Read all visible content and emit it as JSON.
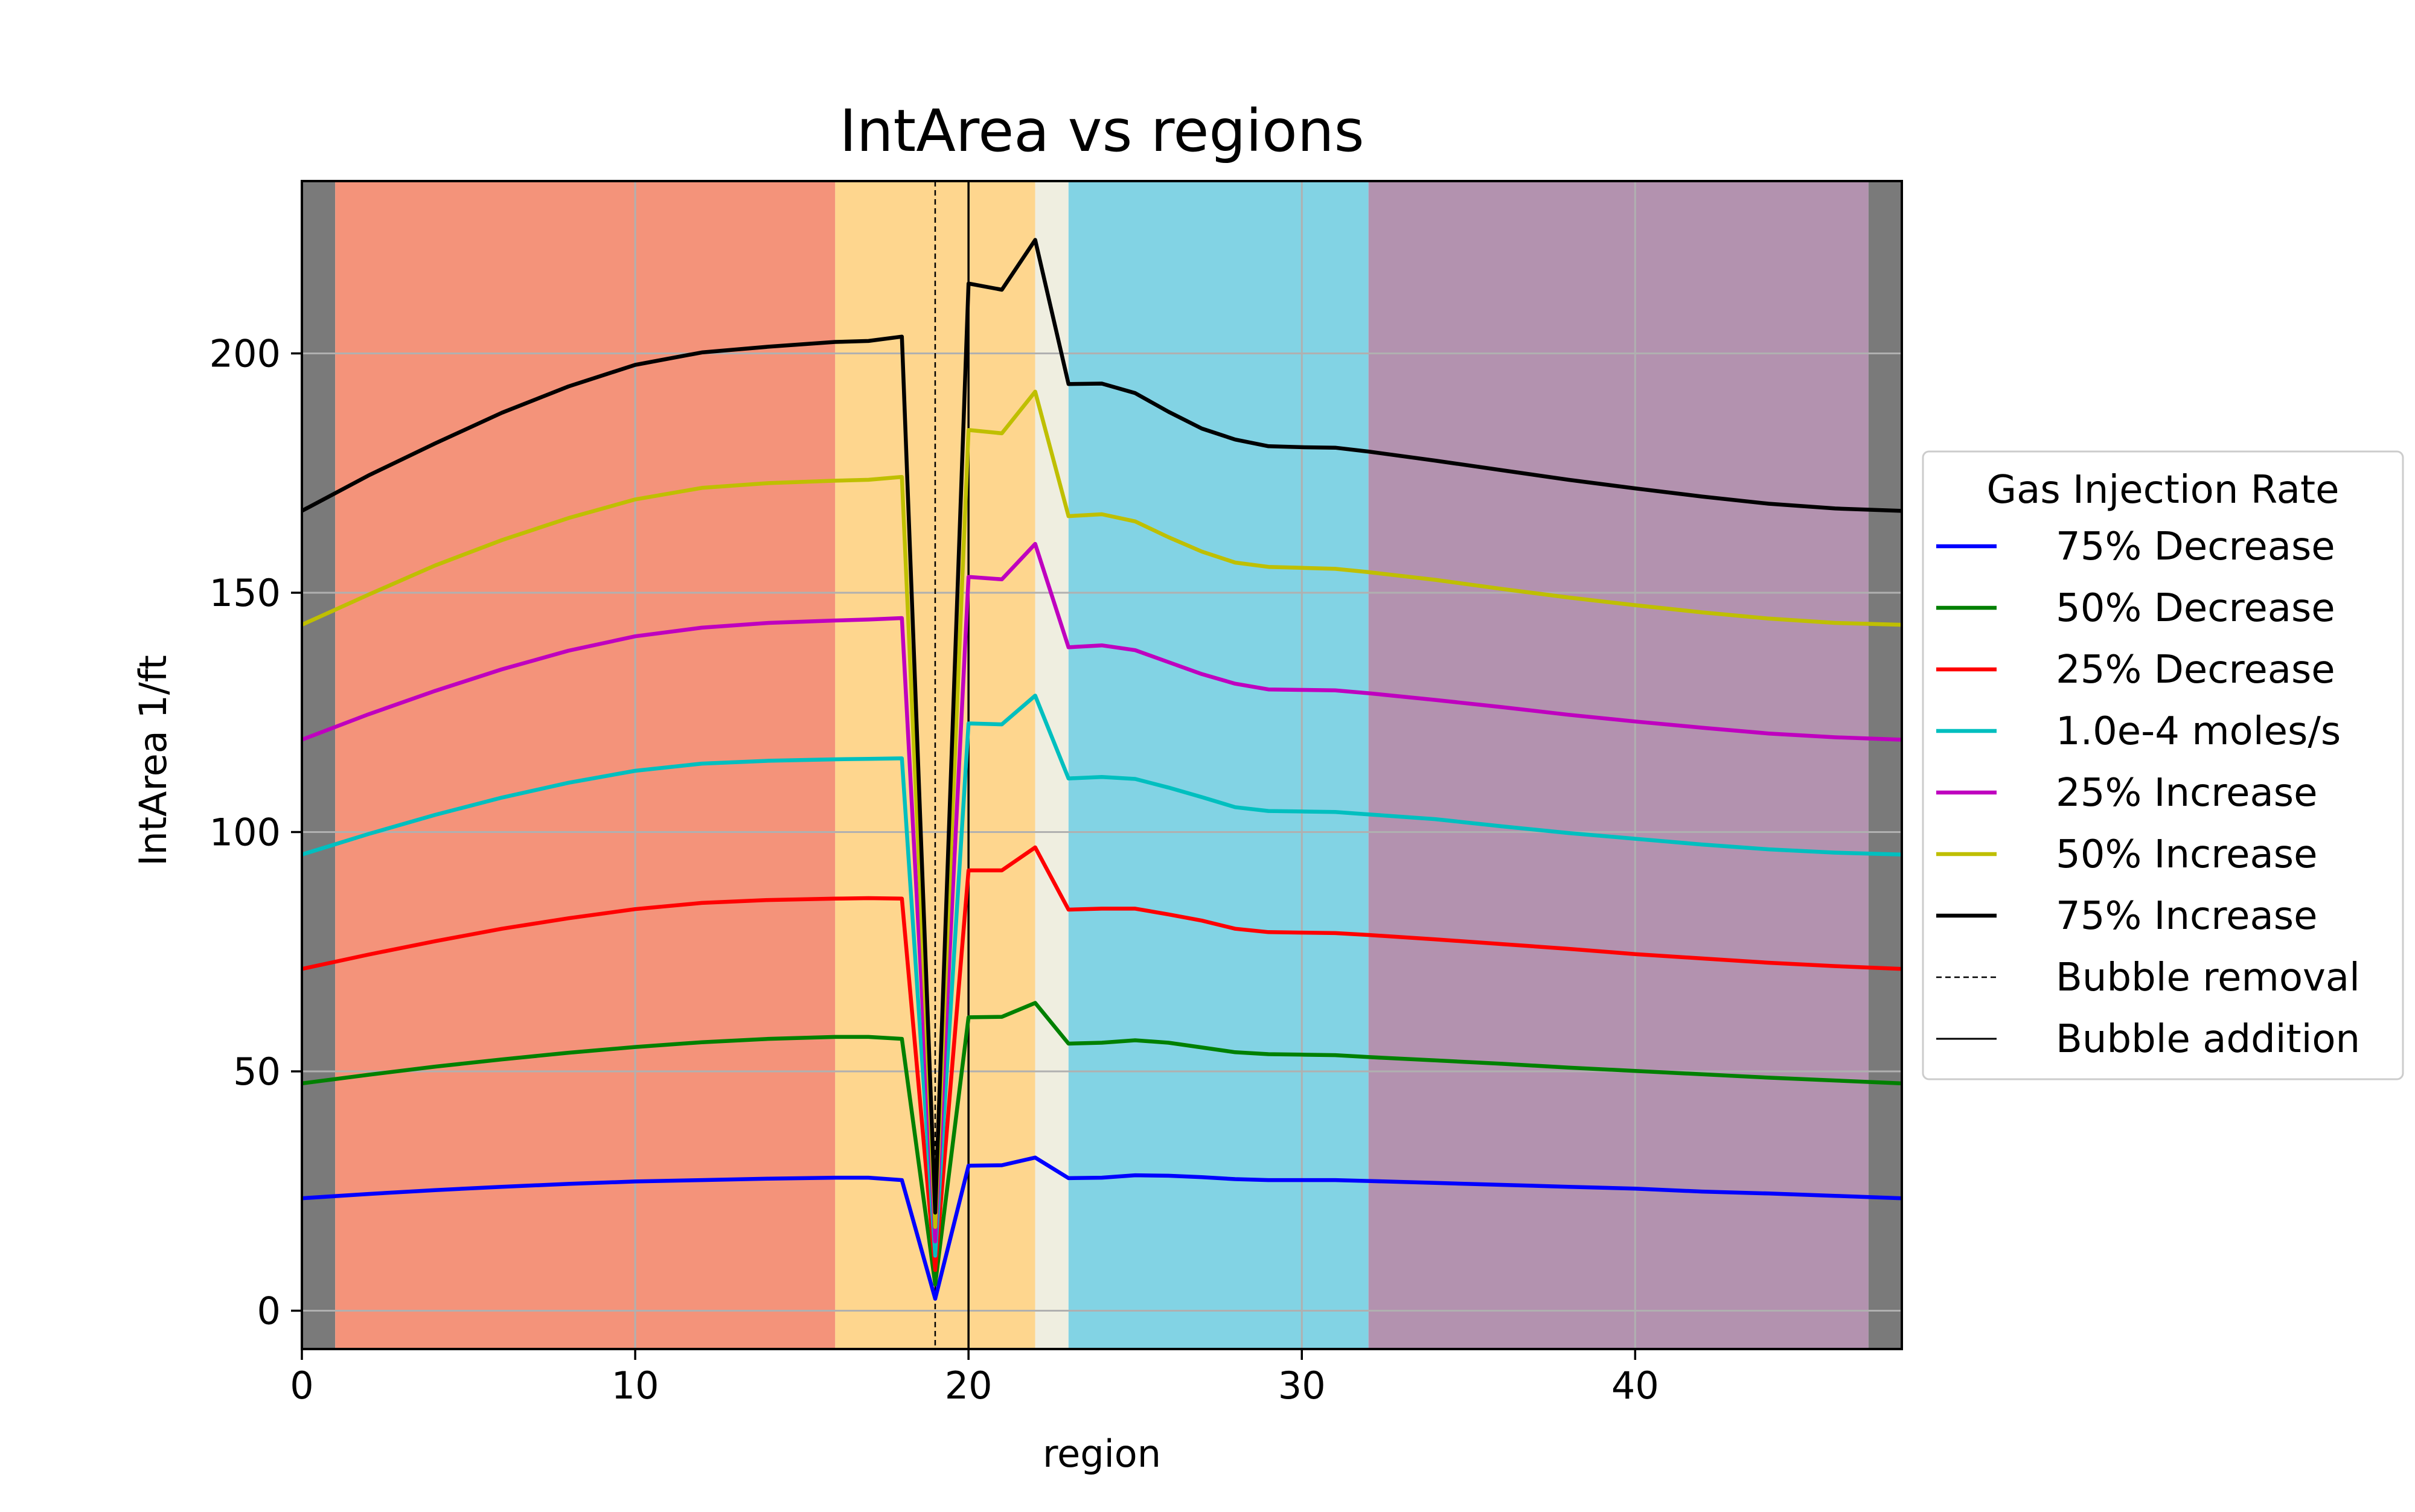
{
  "chart_data": {
    "type": "line",
    "title": "IntArea vs regions",
    "xlabel": "region",
    "ylabel": "IntArea 1/ft",
    "xlim": [
      0,
      48
    ],
    "ylim": [
      -8,
      236
    ],
    "xticks": [
      0,
      10,
      20,
      30,
      40
    ],
    "yticks": [
      0,
      50,
      100,
      150,
      200
    ],
    "grid": true,
    "legend": {
      "title": "Gas Injection Rate",
      "placement": "right-outside"
    },
    "region_bands": [
      {
        "from": 0,
        "to": 1,
        "color": "#7a7a7a"
      },
      {
        "from": 1,
        "to": 16,
        "color": "#f4937a"
      },
      {
        "from": 16,
        "to": 22,
        "color": "#fed68e"
      },
      {
        "from": 22,
        "to": 23,
        "color": "#efeee0"
      },
      {
        "from": 23,
        "to": 32,
        "color": "#82d3e4"
      },
      {
        "from": 32,
        "to": 47,
        "color": "#b392af"
      },
      {
        "from": 47,
        "to": 48,
        "color": "#7a7a7a"
      }
    ],
    "vlines": [
      {
        "name": "Bubble removal",
        "x": 19,
        "style": "dashed",
        "color": "#000000"
      },
      {
        "name": "Bubble addition",
        "x": 20,
        "style": "solid",
        "color": "#000000"
      }
    ],
    "x": [
      0,
      2,
      4,
      6,
      8,
      10,
      12,
      14,
      16,
      17,
      18,
      19,
      20,
      21,
      22,
      23,
      24,
      25,
      26,
      27,
      28,
      29,
      30,
      31,
      32,
      34,
      36,
      38,
      40,
      42,
      44,
      46,
      48
    ],
    "series": [
      {
        "name": "75% Decrease",
        "color": "#0000ff",
        "values": [
          23.5,
          24.4,
          25.2,
          25.9,
          26.5,
          27.0,
          27.3,
          27.6,
          27.8,
          27.8,
          27.3,
          2.5,
          30.3,
          30.4,
          32.0,
          27.7,
          27.8,
          28.3,
          28.2,
          27.9,
          27.5,
          27.3,
          27.3,
          27.3,
          27.1,
          26.7,
          26.3,
          25.9,
          25.5,
          24.9,
          24.5,
          24.0,
          23.5
        ]
      },
      {
        "name": "50% Decrease",
        "color": "#008000",
        "values": [
          47.5,
          49.3,
          51.0,
          52.5,
          53.9,
          55.1,
          56.1,
          56.8,
          57.2,
          57.2,
          56.8,
          5.5,
          61.3,
          61.4,
          64.3,
          55.8,
          56.0,
          56.5,
          56.0,
          55.0,
          54.0,
          53.6,
          53.5,
          53.4,
          53.0,
          52.3,
          51.6,
          50.8,
          50.1,
          49.4,
          48.7,
          48.1,
          47.5
        ]
      },
      {
        "name": "25% Decrease",
        "color": "#ff0000",
        "values": [
          71.4,
          74.4,
          77.2,
          79.8,
          82.0,
          83.9,
          85.2,
          85.8,
          86.1,
          86.2,
          86.1,
          8.5,
          92.0,
          92.0,
          96.8,
          83.8,
          84.0,
          84.0,
          82.8,
          81.5,
          79.8,
          79.1,
          79.0,
          78.9,
          78.5,
          77.6,
          76.6,
          75.6,
          74.5,
          73.6,
          72.7,
          72.0,
          71.4
        ]
      },
      {
        "name": "1.0e-4 moles/s",
        "color": "#00bfbf",
        "values": [
          95.3,
          99.6,
          103.6,
          107.2,
          110.3,
          112.8,
          114.3,
          114.9,
          115.2,
          115.3,
          115.4,
          11.5,
          122.7,
          122.5,
          128.5,
          111.2,
          111.5,
          111.1,
          109.3,
          107.3,
          105.2,
          104.4,
          104.3,
          104.2,
          103.7,
          102.7,
          101.2,
          99.8,
          98.6,
          97.4,
          96.4,
          95.7,
          95.3
        ]
      },
      {
        "name": "25% Increase",
        "color": "#bf00bf",
        "values": [
          119.3,
          124.6,
          129.5,
          134.0,
          137.9,
          140.9,
          142.7,
          143.7,
          144.2,
          144.4,
          144.7,
          14.5,
          153.3,
          152.8,
          160.2,
          138.6,
          139.0,
          138.0,
          135.5,
          133.0,
          131.0,
          129.8,
          129.7,
          129.6,
          129.0,
          127.6,
          126.1,
          124.5,
          123.1,
          121.8,
          120.6,
          119.8,
          119.3
        ]
      },
      {
        "name": "50% Increase",
        "color": "#bfbf00",
        "values": [
          143.3,
          149.6,
          155.7,
          161.0,
          165.6,
          169.5,
          171.9,
          172.9,
          173.4,
          173.6,
          174.2,
          17.5,
          184.0,
          183.3,
          192.0,
          166.0,
          166.4,
          164.9,
          161.6,
          158.6,
          156.3,
          155.4,
          155.2,
          155.0,
          154.3,
          152.7,
          150.8,
          149.0,
          147.4,
          145.9,
          144.6,
          143.7,
          143.3
        ]
      },
      {
        "name": "75% Increase",
        "color": "#000000",
        "values": [
          167.1,
          174.5,
          181.2,
          187.6,
          193.1,
          197.6,
          200.2,
          201.4,
          202.4,
          202.6,
          203.5,
          20.5,
          214.6,
          213.3,
          223.7,
          193.6,
          193.7,
          191.7,
          187.8,
          184.3,
          182.0,
          180.6,
          180.4,
          180.3,
          179.5,
          177.6,
          175.6,
          173.6,
          171.8,
          170.1,
          168.6,
          167.6,
          167.1
        ]
      }
    ]
  }
}
